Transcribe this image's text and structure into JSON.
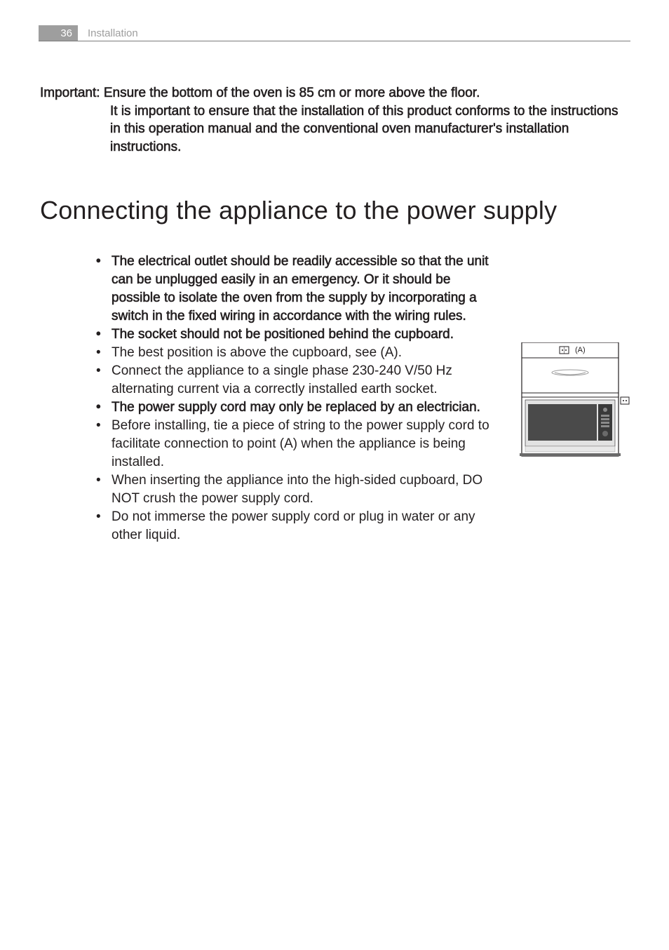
{
  "header": {
    "page_number": "36",
    "section_title": "Installation"
  },
  "important": {
    "label": "Important:",
    "line1": "Ensure the bottom of the oven is 85 cm or more above the floor.",
    "line2": "It is important to ensure that the installation of this product conforms to the instructions in this operation manual and the conventional oven manufacturer's installation instructions."
  },
  "heading": "Connecting the appliance to the power supply",
  "bullets": [
    {
      "text": "The electrical outlet should be readily accessible so that the unit can be unplugged easily in an emergency. Or it should be possible to isolate the oven from the supply by incorporating a switch in the fixed wiring in accordance with the wiring rules.",
      "bold": true
    },
    {
      "text": "The socket should not be positioned behind the cupboard.",
      "bold": true
    },
    {
      "text": "The best position is above the cupboard, see (A).",
      "bold": false
    },
    {
      "text": "Connect the appliance to a single phase 230-240 V/50 Hz alternating current via a correctly installed earth socket.",
      "bold": false
    },
    {
      "text": "The power supply cord may only be replaced by an electrician.",
      "bold": true
    },
    {
      "text": "Before installing, tie a piece of string to the power supply cord to facilitate connection to point (A) when the appliance is being installed.",
      "bold": false
    },
    {
      "text": "When inserting the appliance into the high-sided cupboard, DO NOT crush the power supply cord.",
      "bold": false
    },
    {
      "text": "Do not immerse the power supply cord or plug in water or any other liquid.",
      "bold": false
    }
  ],
  "diagram": {
    "label_A": "(A)",
    "outline_color": "#231f20",
    "cabinet_fill": "#e8e8e8",
    "microwave_fill": "#5a5a5a",
    "panel_fill": "#444444"
  }
}
